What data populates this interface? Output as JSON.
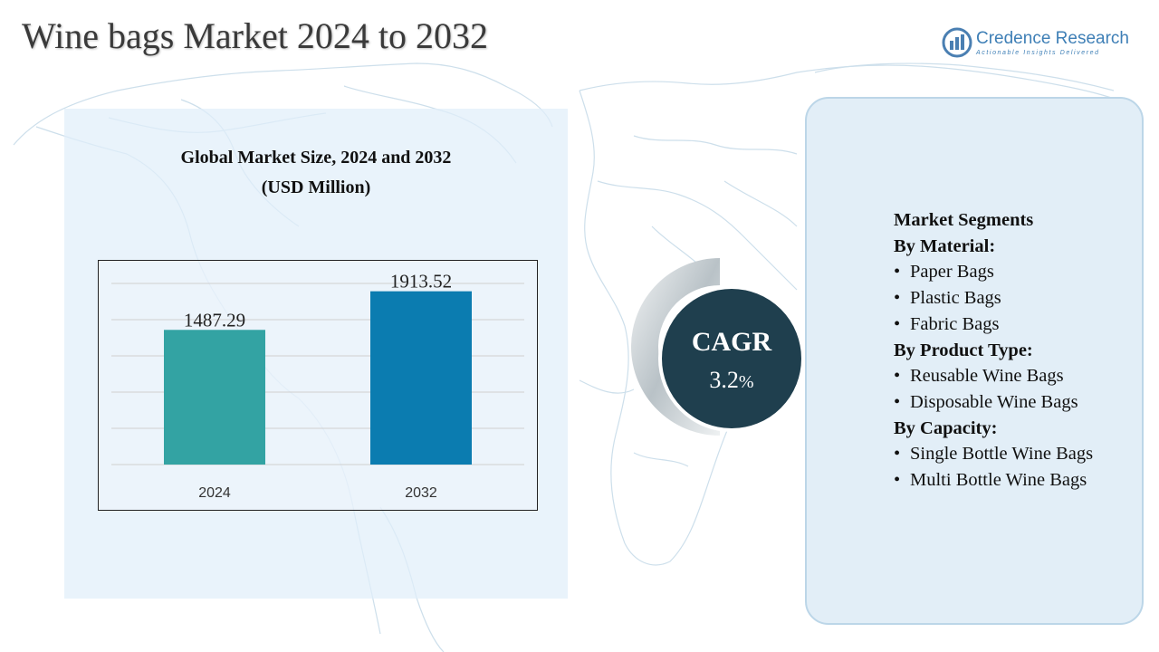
{
  "header": {
    "title": "Wine bags Market 2024 to 2032",
    "brand_name": "Credence Research",
    "brand_tagline": "Actionable Insights Delivered"
  },
  "chart_panel": {
    "title_line1": "Global Market Size, 2024 and 2032",
    "title_line2": "(USD Million)"
  },
  "chart_data": {
    "type": "bar",
    "title": "Global Market Size, 2024 and 2032 (USD Million)",
    "categories": [
      "2024",
      "2032"
    ],
    "values": [
      1487.29,
      1913.52
    ],
    "value_labels": [
      "1487.29",
      "1913.52"
    ],
    "bar_colors": [
      "#33a3a3",
      "#0b7cb0"
    ],
    "ylim": [
      0,
      2000
    ],
    "grid": true,
    "xlabel": "",
    "ylabel": ""
  },
  "cagr": {
    "label": "CAGR",
    "value": "3.2",
    "unit": "%"
  },
  "segments": {
    "heading": "Market Segments",
    "groups": [
      {
        "title": "By Material:",
        "items": [
          "Paper Bags",
          "Plastic Bags",
          "Fabric Bags"
        ]
      },
      {
        "title": "By Product Type:",
        "items": [
          "Reusable Wine Bags",
          "Disposable Wine Bags"
        ]
      },
      {
        "title": "By Capacity:",
        "items": [
          "Single Bottle Wine Bags",
          "Multi Bottle Wine Bags"
        ]
      }
    ]
  },
  "colors": {
    "title": "#3a3a3a",
    "brand": "#3e7fb6",
    "panel_bg": "#e1eefa",
    "cagr_circle": "#1f3f4e",
    "map_stroke": "#cfe0ec"
  }
}
